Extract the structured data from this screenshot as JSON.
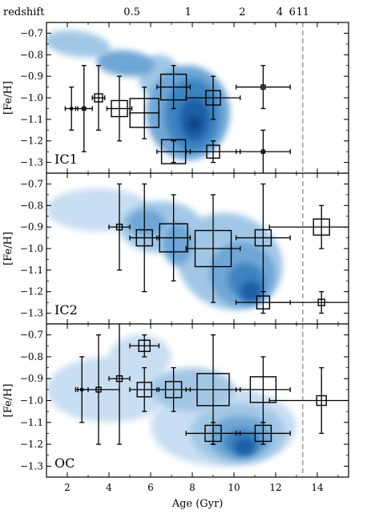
{
  "colors": {
    "contour_levels": [
      "#e9f2fb",
      "#c9def2",
      "#a2c7e6",
      "#6fa6d5",
      "#3d83c1",
      "#1d5fa6",
      "#0b3f80"
    ],
    "axes": "#000000",
    "marker_face": "none",
    "divider_line": "#888888"
  },
  "chart_data": {
    "type": "scatter",
    "xlabel": "Age (Gyr)",
    "ylabel": "[Fe/H]",
    "xlim": [
      1.0,
      15.5
    ],
    "ylim": [
      -1.35,
      -0.65
    ],
    "x_ticks": [
      2,
      4,
      6,
      8,
      10,
      12,
      14
    ],
    "y_ticks": [
      -0.7,
      -0.8,
      -0.9,
      -1.0,
      -1.1,
      -1.2,
      -1.3
    ],
    "y_tick_labels": [
      "−0.7",
      "−0.8",
      "−0.9",
      "−1.0",
      "−1.1",
      "−1.2",
      "−1.3"
    ],
    "top_axis": {
      "label": "redshift",
      "ticks": [
        {
          "label": "0.5",
          "age": 5.1
        },
        {
          "label": "1",
          "age": 7.8
        },
        {
          "label": "2",
          "age": 10.4
        },
        {
          "label": "4",
          "age": 12.2
        },
        {
          "label": "6",
          "age": 12.8
        },
        {
          "label": "11",
          "age": 13.3
        }
      ]
    },
    "reference_line_age": 13.3,
    "grid": false,
    "panels": [
      {
        "label": "IC1",
        "points": [
          {
            "x": 2.2,
            "y": -1.05,
            "xerr": 0.3,
            "yerr": 0.1,
            "size": 2
          },
          {
            "x": 2.8,
            "y": -1.05,
            "xerr": 0.4,
            "yerr": 0.2,
            "size": 4
          },
          {
            "x": 3.5,
            "y": -1.0,
            "xerr": 0.3,
            "yerr": 0.15,
            "size": 10
          },
          {
            "x": 4.5,
            "y": -1.05,
            "xerr": 0.6,
            "yerr": 0.15,
            "size": 20
          },
          {
            "x": 5.7,
            "y": -1.07,
            "xerr": 0.7,
            "yerr": 0.12,
            "size": 36
          },
          {
            "x": 7.1,
            "y": -0.95,
            "xerr": 0.8,
            "yerr": 0.1,
            "size": 32
          },
          {
            "x": 7.1,
            "y": -1.25,
            "xerr": 0.8,
            "yerr": 0.05,
            "size": 30
          },
          {
            "x": 9.0,
            "y": -1.0,
            "xerr": 1.3,
            "yerr": 0.1,
            "size": 18
          },
          {
            "x": 9.0,
            "y": -1.25,
            "xerr": 1.3,
            "yerr": 0.05,
            "size": 16
          },
          {
            "x": 11.4,
            "y": -0.95,
            "xerr": 1.3,
            "yerr": 0.1,
            "size": 5
          },
          {
            "x": 11.4,
            "y": -1.25,
            "xerr": 1.3,
            "yerr": 0.1,
            "size": 4
          }
        ],
        "blobs": [
          {
            "x": 2.5,
            "y": -0.75,
            "rx": 1.6,
            "ry": 0.06,
            "level": 2,
            "rot": 8
          },
          {
            "x": 4.8,
            "y": -0.84,
            "rx": 1.4,
            "ry": 0.06,
            "level": 3,
            "rot": 5
          },
          {
            "x": 6.4,
            "y": -0.9,
            "rx": 1.0,
            "ry": 0.1,
            "level": 2,
            "rot": 0
          },
          {
            "x": 7.8,
            "y": -1.07,
            "rx": 2.0,
            "ry": 0.22,
            "level": 3,
            "rot": 0
          },
          {
            "x": 8.0,
            "y": -1.08,
            "rx": 1.3,
            "ry": 0.17,
            "level": 4,
            "rot": 0
          },
          {
            "x": 8.1,
            "y": -1.1,
            "rx": 0.7,
            "ry": 0.1,
            "level": 5,
            "rot": 0
          },
          {
            "x": 8.1,
            "y": -1.12,
            "rx": 0.3,
            "ry": 0.03,
            "level": 6,
            "rot": 0
          }
        ]
      },
      {
        "label": "IC2",
        "points": [
          {
            "x": 4.5,
            "y": -0.9,
            "xerr": 0.5,
            "yerr": 0.2,
            "size": 7
          },
          {
            "x": 5.7,
            "y": -0.95,
            "xerr": 0.7,
            "yerr": 0.25,
            "size": 20
          },
          {
            "x": 7.1,
            "y": -0.95,
            "xerr": 0.8,
            "yerr": 0.2,
            "size": 35
          },
          {
            "x": 9.0,
            "y": -1.0,
            "xerr": 1.3,
            "yerr": 0.25,
            "size": 45
          },
          {
            "x": 11.4,
            "y": -0.95,
            "xerr": 1.3,
            "yerr": 0.25,
            "size": 20
          },
          {
            "x": 11.4,
            "y": -1.25,
            "xerr": 1.3,
            "yerr": 0.05,
            "size": 16
          },
          {
            "x": 14.2,
            "y": -0.9,
            "xerr": 2.5,
            "yerr": 0.1,
            "size": 20
          },
          {
            "x": 14.2,
            "y": -1.25,
            "xerr": 2.5,
            "yerr": 0.05,
            "size": 8
          }
        ],
        "blobs": [
          {
            "x": 3.5,
            "y": -0.82,
            "rx": 2.5,
            "ry": 0.1,
            "level": 1,
            "rot": 0
          },
          {
            "x": 6.5,
            "y": -0.9,
            "rx": 2.0,
            "ry": 0.12,
            "level": 2,
            "rot": 0
          },
          {
            "x": 9.8,
            "y": -1.06,
            "rx": 2.6,
            "ry": 0.22,
            "level": 2,
            "rot": 25
          },
          {
            "x": 5.8,
            "y": -0.88,
            "rx": 0.9,
            "ry": 0.06,
            "level": 3,
            "rot": 0
          },
          {
            "x": 7.3,
            "y": -0.98,
            "rx": 0.7,
            "ry": 0.1,
            "level": 3,
            "rot": 0
          },
          {
            "x": 10.4,
            "y": -1.12,
            "rx": 1.6,
            "ry": 0.15,
            "level": 3,
            "rot": 35
          },
          {
            "x": 10.6,
            "y": -1.15,
            "rx": 0.9,
            "ry": 0.08,
            "level": 4,
            "rot": 35
          },
          {
            "x": 10.8,
            "y": -1.2,
            "rx": 0.5,
            "ry": 0.05,
            "level": 5,
            "rot": 30
          }
        ]
      },
      {
        "label": "OC",
        "points": [
          {
            "x": 2.7,
            "y": -0.95,
            "xerr": 0.3,
            "yerr": 0.15,
            "size": 2
          },
          {
            "x": 3.5,
            "y": -0.95,
            "xerr": 1.0,
            "yerr": 0.25,
            "size": 6
          },
          {
            "x": 4.5,
            "y": -0.9,
            "xerr": 0.5,
            "yerr": 0.3,
            "size": 7
          },
          {
            "x": 5.7,
            "y": -0.75,
            "xerr": 0.7,
            "yerr": 0.05,
            "size": 14
          },
          {
            "x": 5.7,
            "y": -0.95,
            "xerr": 0.7,
            "yerr": 0.1,
            "size": 18
          },
          {
            "x": 7.1,
            "y": -0.95,
            "xerr": 0.8,
            "yerr": 0.1,
            "size": 20
          },
          {
            "x": 9.0,
            "y": -0.95,
            "xerr": 1.3,
            "yerr": 0.25,
            "size": 40
          },
          {
            "x": 9.0,
            "y": -1.15,
            "xerr": 1.3,
            "yerr": 0.05,
            "size": 20
          },
          {
            "x": 11.4,
            "y": -0.95,
            "xerr": 1.3,
            "yerr": 0.15,
            "size": 32
          },
          {
            "x": 11.4,
            "y": -1.15,
            "xerr": 1.3,
            "yerr": 0.05,
            "size": 20
          },
          {
            "x": 14.2,
            "y": -1.0,
            "xerr": 2.5,
            "yerr": 0.15,
            "size": 12
          }
        ],
        "blobs": [
          {
            "x": 4.0,
            "y": -0.95,
            "rx": 3.0,
            "ry": 0.15,
            "level": 1,
            "rot": 0
          },
          {
            "x": 5.5,
            "y": -0.8,
            "rx": 1.5,
            "ry": 0.1,
            "level": 1,
            "rot": 0
          },
          {
            "x": 9.5,
            "y": -1.12,
            "rx": 3.5,
            "ry": 0.18,
            "level": 1,
            "rot": 0
          },
          {
            "x": 8.0,
            "y": -0.95,
            "rx": 2.0,
            "ry": 0.1,
            "level": 2,
            "rot": 0
          },
          {
            "x": 10.2,
            "y": -1.15,
            "rx": 2.3,
            "ry": 0.14,
            "level": 2,
            "rot": 0
          },
          {
            "x": 10.3,
            "y": -1.17,
            "rx": 1.5,
            "ry": 0.1,
            "level": 3,
            "rot": 0
          },
          {
            "x": 10.4,
            "y": -1.19,
            "rx": 0.9,
            "ry": 0.06,
            "level": 4,
            "rot": 0
          },
          {
            "x": 10.5,
            "y": -1.21,
            "rx": 0.5,
            "ry": 0.04,
            "level": 5,
            "rot": 0
          }
        ]
      }
    ]
  }
}
